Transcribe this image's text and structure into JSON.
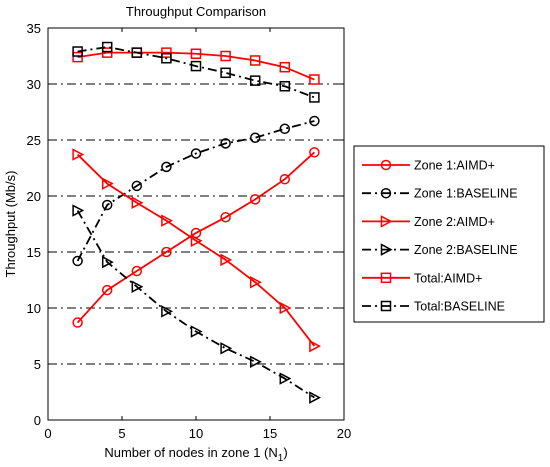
{
  "chart_data": {
    "type": "line",
    "title": "Throughput Comparison",
    "xlabel": "Number of nodes in zone 1 (N",
    "xlabel_subscript": "1",
    "xlabel_suffix": ")",
    "ylabel": "Throughput (Mb/s)",
    "xlim": [
      0,
      20
    ],
    "ylim": [
      0,
      35
    ],
    "xticks": [
      0,
      5,
      10,
      15,
      20
    ],
    "yticks": [
      0,
      5,
      10,
      15,
      20,
      25,
      30,
      35
    ],
    "grid": "horizontal dash-dot",
    "legend_position": "right, outside",
    "x": [
      2,
      4,
      6,
      8,
      10,
      12,
      14,
      16,
      18
    ],
    "series": [
      {
        "name": "Zone 1:AIMD+",
        "color": "#ff0000",
        "line": "solid",
        "marker": "circle",
        "values": [
          8.7,
          11.6,
          13.3,
          15.0,
          16.7,
          18.1,
          19.7,
          21.5,
          23.9
        ]
      },
      {
        "name": "Zone 1:BASELINE",
        "color": "#000000",
        "line": "dashdot",
        "marker": "circle",
        "values": [
          14.2,
          19.2,
          20.9,
          22.6,
          23.8,
          24.7,
          25.2,
          26.0,
          26.7
        ]
      },
      {
        "name": "Zone 2:AIMD+",
        "color": "#ff0000",
        "line": "solid",
        "marker": "triangle-right",
        "values": [
          23.7,
          21.1,
          19.4,
          17.8,
          16.0,
          14.3,
          12.3,
          10.0,
          6.6
        ]
      },
      {
        "name": "Zone 2:BASELINE",
        "color": "#000000",
        "line": "dashdot",
        "marker": "triangle-right",
        "values": [
          18.7,
          14.1,
          11.9,
          9.7,
          7.9,
          6.4,
          5.2,
          3.7,
          2.0
        ]
      },
      {
        "name": "Total:AIMD+",
        "color": "#ff0000",
        "line": "solid",
        "marker": "square",
        "values": [
          32.4,
          32.8,
          32.8,
          32.8,
          32.7,
          32.5,
          32.1,
          31.5,
          30.4
        ]
      },
      {
        "name": "Total:BASELINE",
        "color": "#000000",
        "line": "dashdot",
        "marker": "square",
        "values": [
          32.9,
          33.3,
          32.8,
          32.3,
          31.6,
          31.0,
          30.3,
          29.8,
          28.8
        ]
      }
    ]
  }
}
